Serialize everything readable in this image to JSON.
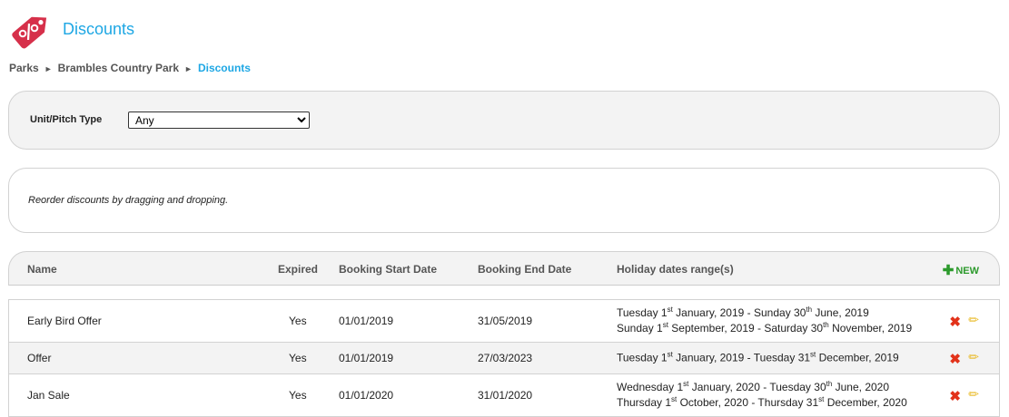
{
  "header": {
    "title": "Discounts",
    "icon": "discount-tag-icon",
    "icon_color": "#d6304a"
  },
  "breadcrumb": [
    {
      "label": "Parks"
    },
    {
      "label": "Brambles Country Park"
    },
    {
      "label": "Discounts"
    }
  ],
  "filter": {
    "label": "Unit/Pitch Type",
    "selected": "Any"
  },
  "info": {
    "text": "Reorder discounts by dragging and dropping."
  },
  "table": {
    "columns": [
      "Name",
      "Expired",
      "Booking Start Date",
      "Booking End Date",
      "Holiday dates range(s)"
    ],
    "new_label": "NEW",
    "rows": [
      {
        "name": "Early Bird Offer",
        "expired": "Yes",
        "start": "01/01/2019",
        "end": "31/05/2019",
        "ranges": [
          [
            [
              "Tuesday 1",
              ""
            ],
            [
              "st",
              true
            ],
            [
              " January, 2019 - Sunday 30",
              ""
            ],
            [
              "th",
              true
            ],
            [
              " June, 2019",
              ""
            ]
          ],
          [
            [
              "Sunday 1",
              ""
            ],
            [
              "st",
              true
            ],
            [
              " September, 2019 - Saturday 30",
              ""
            ],
            [
              "th",
              true
            ],
            [
              " November, 2019",
              ""
            ]
          ]
        ]
      },
      {
        "name": "Offer",
        "expired": "Yes",
        "start": "01/01/2019",
        "end": "27/03/2023",
        "ranges": [
          [
            [
              "Tuesday 1",
              ""
            ],
            [
              "st",
              true
            ],
            [
              " January, 2019 - Tuesday 31",
              ""
            ],
            [
              "st",
              true
            ],
            [
              " December, 2019",
              ""
            ]
          ]
        ]
      },
      {
        "name": "Jan Sale",
        "expired": "Yes",
        "start": "01/01/2020",
        "end": "31/01/2020",
        "ranges": [
          [
            [
              "Wednesday 1",
              ""
            ],
            [
              "st",
              true
            ],
            [
              " January, 2020 - Tuesday 30",
              ""
            ],
            [
              "th",
              true
            ],
            [
              " June, 2020",
              ""
            ]
          ],
          [
            [
              "Thursday 1",
              ""
            ],
            [
              "st",
              true
            ],
            [
              " October, 2020 - Thursday 31",
              ""
            ],
            [
              "st",
              true
            ],
            [
              " December, 2020",
              ""
            ]
          ]
        ]
      }
    ]
  }
}
